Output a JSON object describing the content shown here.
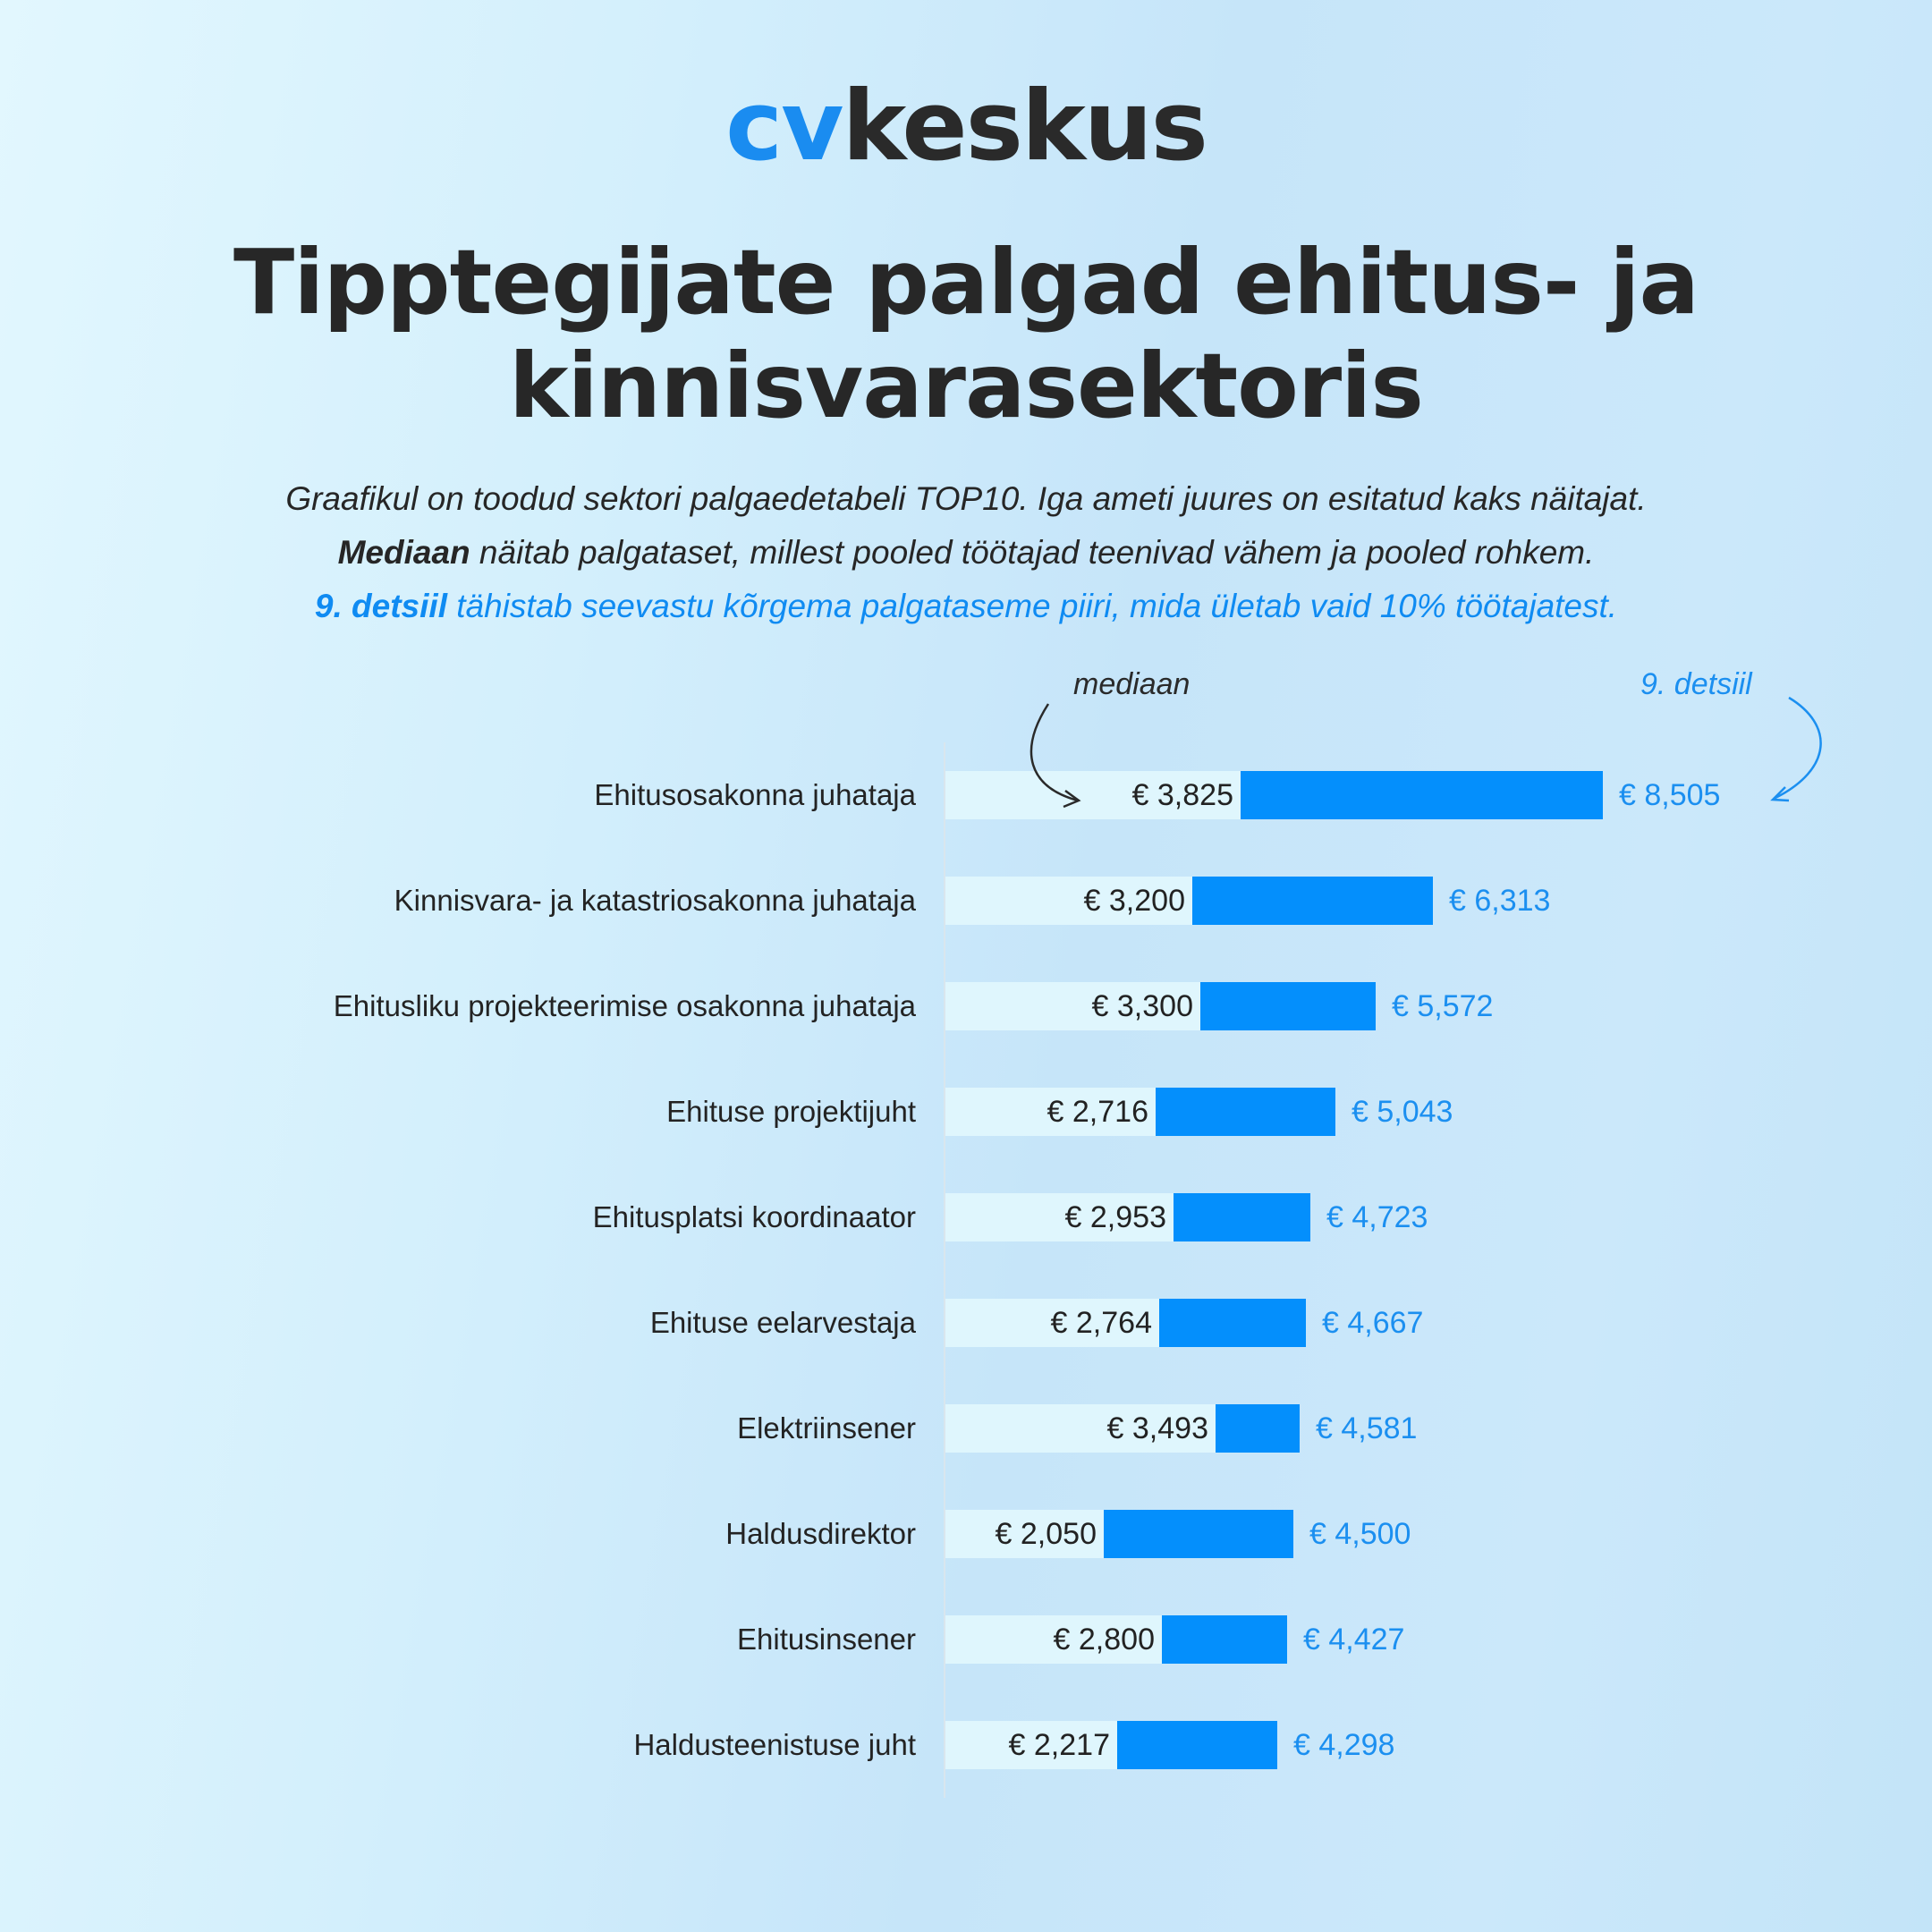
{
  "logo": {
    "prefix": "cv",
    "suffix": "keskus"
  },
  "title": {
    "line1": "Tipptegijate palgad ehitus- ja",
    "line2": "kinnisvarasektoris"
  },
  "subtitle": {
    "line1": "Graafikul on toodud sektori palgaedetabeli TOP10. Iga ameti juures on esitatud kaks näitajat.",
    "line2_bold": "Mediaan",
    "line2_rest": " näitab palgataset, millest pooled töötajad teenivad vähem ja pooled rohkem.",
    "line3_bold": "9. detsiil",
    "line3_rest": " tähistab seevastu kõrgema palgataseme piiri, mida ületab vaid 10% töötajatest."
  },
  "annotations": {
    "median": "mediaan",
    "decile": "9. detsiil"
  },
  "colors": {
    "accent": "#048ffc",
    "median_bar": "#dff6fd",
    "text": "#252525",
    "accent_text": "#1b8ff0"
  },
  "rows": [
    {
      "label": "Ehitusosakonna juhataja",
      "median": "€ 3,825",
      "decile": "€ 8,505"
    },
    {
      "label": "Kinnisvara- ja katastriosakonna juhataja",
      "median": "€ 3,200",
      "decile": "€ 6,313"
    },
    {
      "label": "Ehitusliku projekteerimise osakonna juhataja",
      "median": "€ 3,300",
      "decile": "€ 5,572"
    },
    {
      "label": "Ehituse projektijuht",
      "median": "€ 2,716",
      "decile": "€ 5,043"
    },
    {
      "label": "Ehitusplatsi koordinaator",
      "median": "€ 2,953",
      "decile": "€ 4,723"
    },
    {
      "label": "Ehituse eelarvestaja",
      "median": "€ 2,764",
      "decile": "€ 4,667"
    },
    {
      "label": "Elektriinsener",
      "median": "€ 3,493",
      "decile": "€ 4,581"
    },
    {
      "label": "Haldusdirektor",
      "median": "€ 2,050",
      "decile": "€ 4,500"
    },
    {
      "label": "Ehitusinsener",
      "median": "€ 2,800",
      "decile": "€ 4,427"
    },
    {
      "label": "Haldusteenistuse juht",
      "median": "€ 2,217",
      "decile": "€ 4,298"
    }
  ],
  "chart_data": {
    "type": "bar",
    "orientation": "horizontal",
    "title": "Tipptegijate palgad ehitus- ja kinnisvarasektoris",
    "subtitle": "Graafikul on toodud sektori palgaedetabeli TOP10. Iga ameti juures on esitatud kaks näitajat.",
    "categories": [
      "Ehitusosakonna juhataja",
      "Kinnisvara- ja katastriosakonna juhataja",
      "Ehitusliku projekteerimise osakonna juhataja",
      "Ehituse projektijuht",
      "Ehitusplatsi koordinaator",
      "Ehituse eelarvestaja",
      "Elektriinsener",
      "Haldusdirektor",
      "Ehitusinsener",
      "Haldusteenistuse juht"
    ],
    "series": [
      {
        "name": "mediaan",
        "values": [
          3825,
          3200,
          3300,
          2716,
          2953,
          2764,
          3493,
          2050,
          2800,
          2217
        ],
        "color": "#dff6fd"
      },
      {
        "name": "9. detsiil",
        "values": [
          8505,
          6313,
          5572,
          5043,
          4723,
          4667,
          4581,
          4500,
          4427,
          4298
        ],
        "color": "#048ffc"
      }
    ],
    "units": "€ / month",
    "xlabel": "",
    "ylabel": "",
    "xlim": [
      0,
      9000
    ],
    "grid": false,
    "legend": "inline annotations (mediaan, 9. detsiil)"
  }
}
